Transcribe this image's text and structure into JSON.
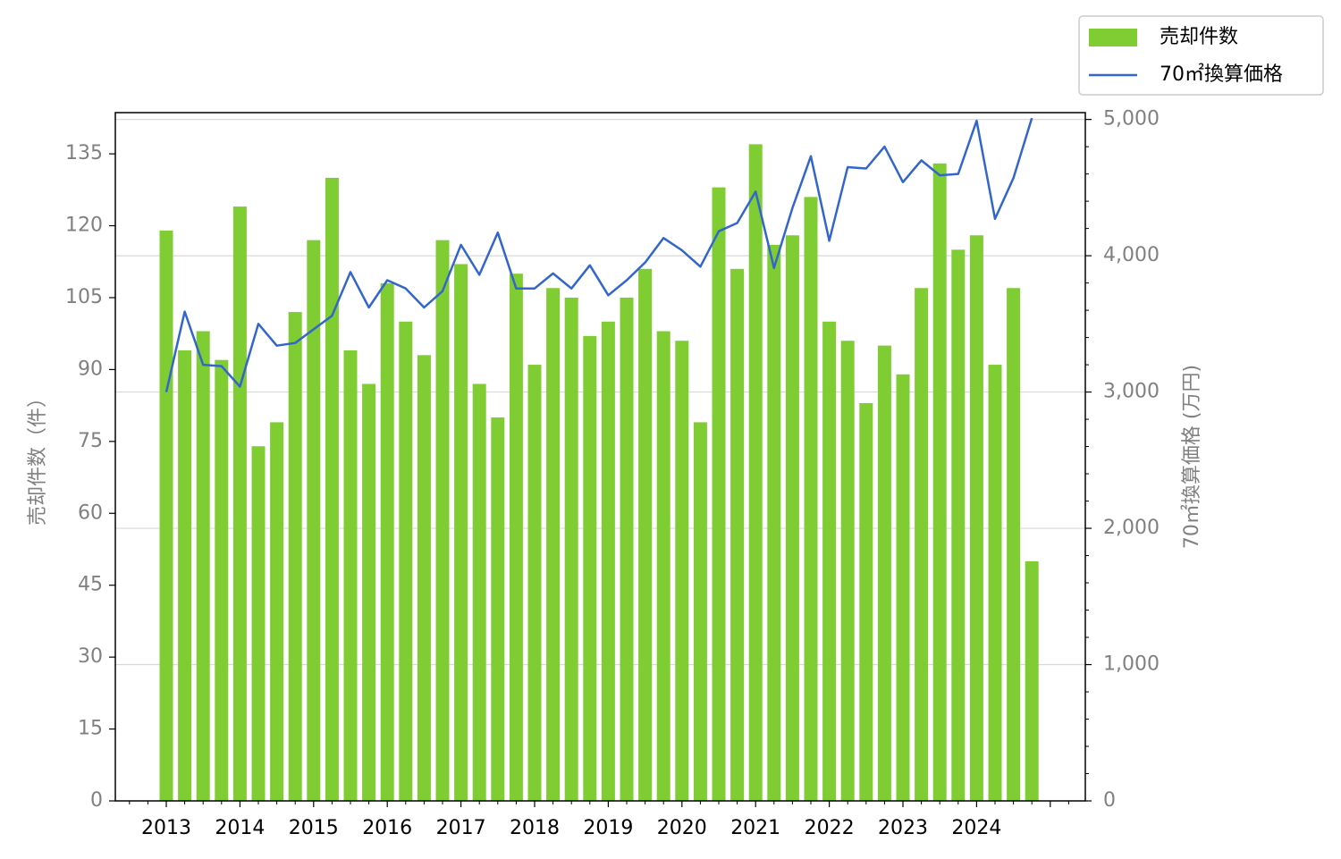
{
  "colors": {
    "bar": "#80cc33",
    "line": "#3366cc",
    "grid": "#d9d9d9",
    "tick_text": "#808080"
  },
  "legend": {
    "bar_label": "売却件数",
    "line_label": "70㎡換算価格"
  },
  "chart_data": {
    "type": "bar",
    "ylabel": "売却件数（件）",
    "y2label": "70㎡換算価格 (万円)",
    "ylim": [
      0,
      143.6
    ],
    "y2lim": [
      0,
      5050
    ],
    "yticks": [
      0,
      15,
      30,
      45,
      60,
      75,
      90,
      105,
      120,
      135
    ],
    "y2ticks": [
      0,
      1000,
      2000,
      3000,
      4000,
      5000
    ],
    "y2tick_labels": [
      "0",
      "1,000",
      "2,000",
      "3,000",
      "4,000",
      "5,000"
    ],
    "xticks": [
      "2013",
      "2014",
      "2015",
      "2016",
      "2017",
      "2018",
      "2019",
      "2020",
      "2021",
      "2022",
      "2023",
      "2024"
    ],
    "grid": "y2",
    "legend_position": "top-right",
    "series": [
      {
        "name": "売却件数",
        "type": "bar",
        "axis": "left",
        "values": [
          119,
          94,
          98,
          92,
          124,
          74,
          79,
          102,
          117,
          130,
          94,
          87,
          108,
          100,
          93,
          117,
          112,
          87,
          80,
          110,
          91,
          107,
          105,
          97,
          100,
          105,
          111,
          98,
          96,
          79,
          128,
          111,
          137,
          116,
          118,
          126,
          100,
          96,
          83,
          95,
          89,
          107,
          133,
          115,
          118,
          91,
          107,
          50
        ]
      },
      {
        "name": "70㎡換算価格",
        "type": "line",
        "axis": "right",
        "values": [
          3000,
          3590,
          3200,
          3190,
          3040,
          3500,
          3340,
          3360,
          3460,
          3560,
          3880,
          3620,
          3820,
          3760,
          3620,
          3740,
          4080,
          3860,
          4170,
          3760,
          3760,
          3870,
          3760,
          3930,
          3710,
          3820,
          3950,
          4130,
          4040,
          3920,
          4180,
          4240,
          4470,
          3910,
          4350,
          4730,
          4110,
          4650,
          4640,
          4800,
          4540,
          4700,
          4590,
          4600,
          4990,
          4270,
          4570,
          5010
        ]
      }
    ]
  }
}
